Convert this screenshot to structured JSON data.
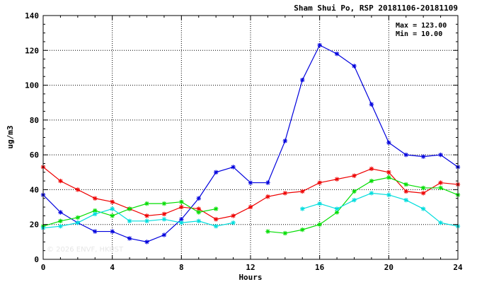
{
  "chart_data": {
    "type": "line",
    "title": "Sham Shui Po, RSP 20181106-20181109",
    "xlabel": "Hours",
    "ylabel": "ug/m3",
    "xlim": [
      0,
      24
    ],
    "ylim": [
      0,
      140
    ],
    "x_ticks": [
      0,
      4,
      8,
      12,
      16,
      20,
      24
    ],
    "y_ticks": [
      0,
      20,
      40,
      60,
      80,
      100,
      120,
      140
    ],
    "grid": true,
    "annotations": {
      "max_label": "Max = 123.00",
      "min_label": "Min = 10.00"
    },
    "watermark": "© 2026 ENVF, HKUST",
    "x": [
      0,
      1,
      2,
      3,
      4,
      5,
      6,
      7,
      8,
      9,
      10,
      11,
      12,
      13,
      14,
      15,
      16,
      17,
      18,
      19,
      20,
      21,
      22,
      23,
      24
    ],
    "series": [
      {
        "color": "#0000dd",
        "values": [
          37,
          27,
          21,
          16,
          16,
          12,
          10,
          14,
          23,
          35,
          50,
          53,
          44,
          44,
          68,
          103,
          123,
          118,
          111,
          89,
          67,
          60,
          59,
          60,
          53
        ]
      },
      {
        "color": "#ee0000",
        "values": [
          53,
          45,
          40,
          35,
          33,
          29,
          25,
          26,
          30,
          29,
          23,
          25,
          30,
          36,
          38,
          39,
          44,
          46,
          48,
          52,
          50,
          39,
          38,
          44,
          43
        ]
      },
      {
        "color": "#00dd00",
        "values": [
          19,
          22,
          24,
          28,
          25,
          29,
          32,
          32,
          33,
          27,
          29,
          null,
          null,
          16,
          15,
          17,
          20,
          27,
          39,
          45,
          47,
          43,
          41,
          41,
          37
        ]
      },
      {
        "color": "#00dddd",
        "values": [
          18,
          19,
          21,
          26,
          29,
          22,
          22,
          23,
          21,
          22,
          19,
          21,
          null,
          null,
          null,
          29,
          32,
          29,
          34,
          38,
          37,
          34,
          29,
          21,
          19
        ]
      }
    ]
  }
}
